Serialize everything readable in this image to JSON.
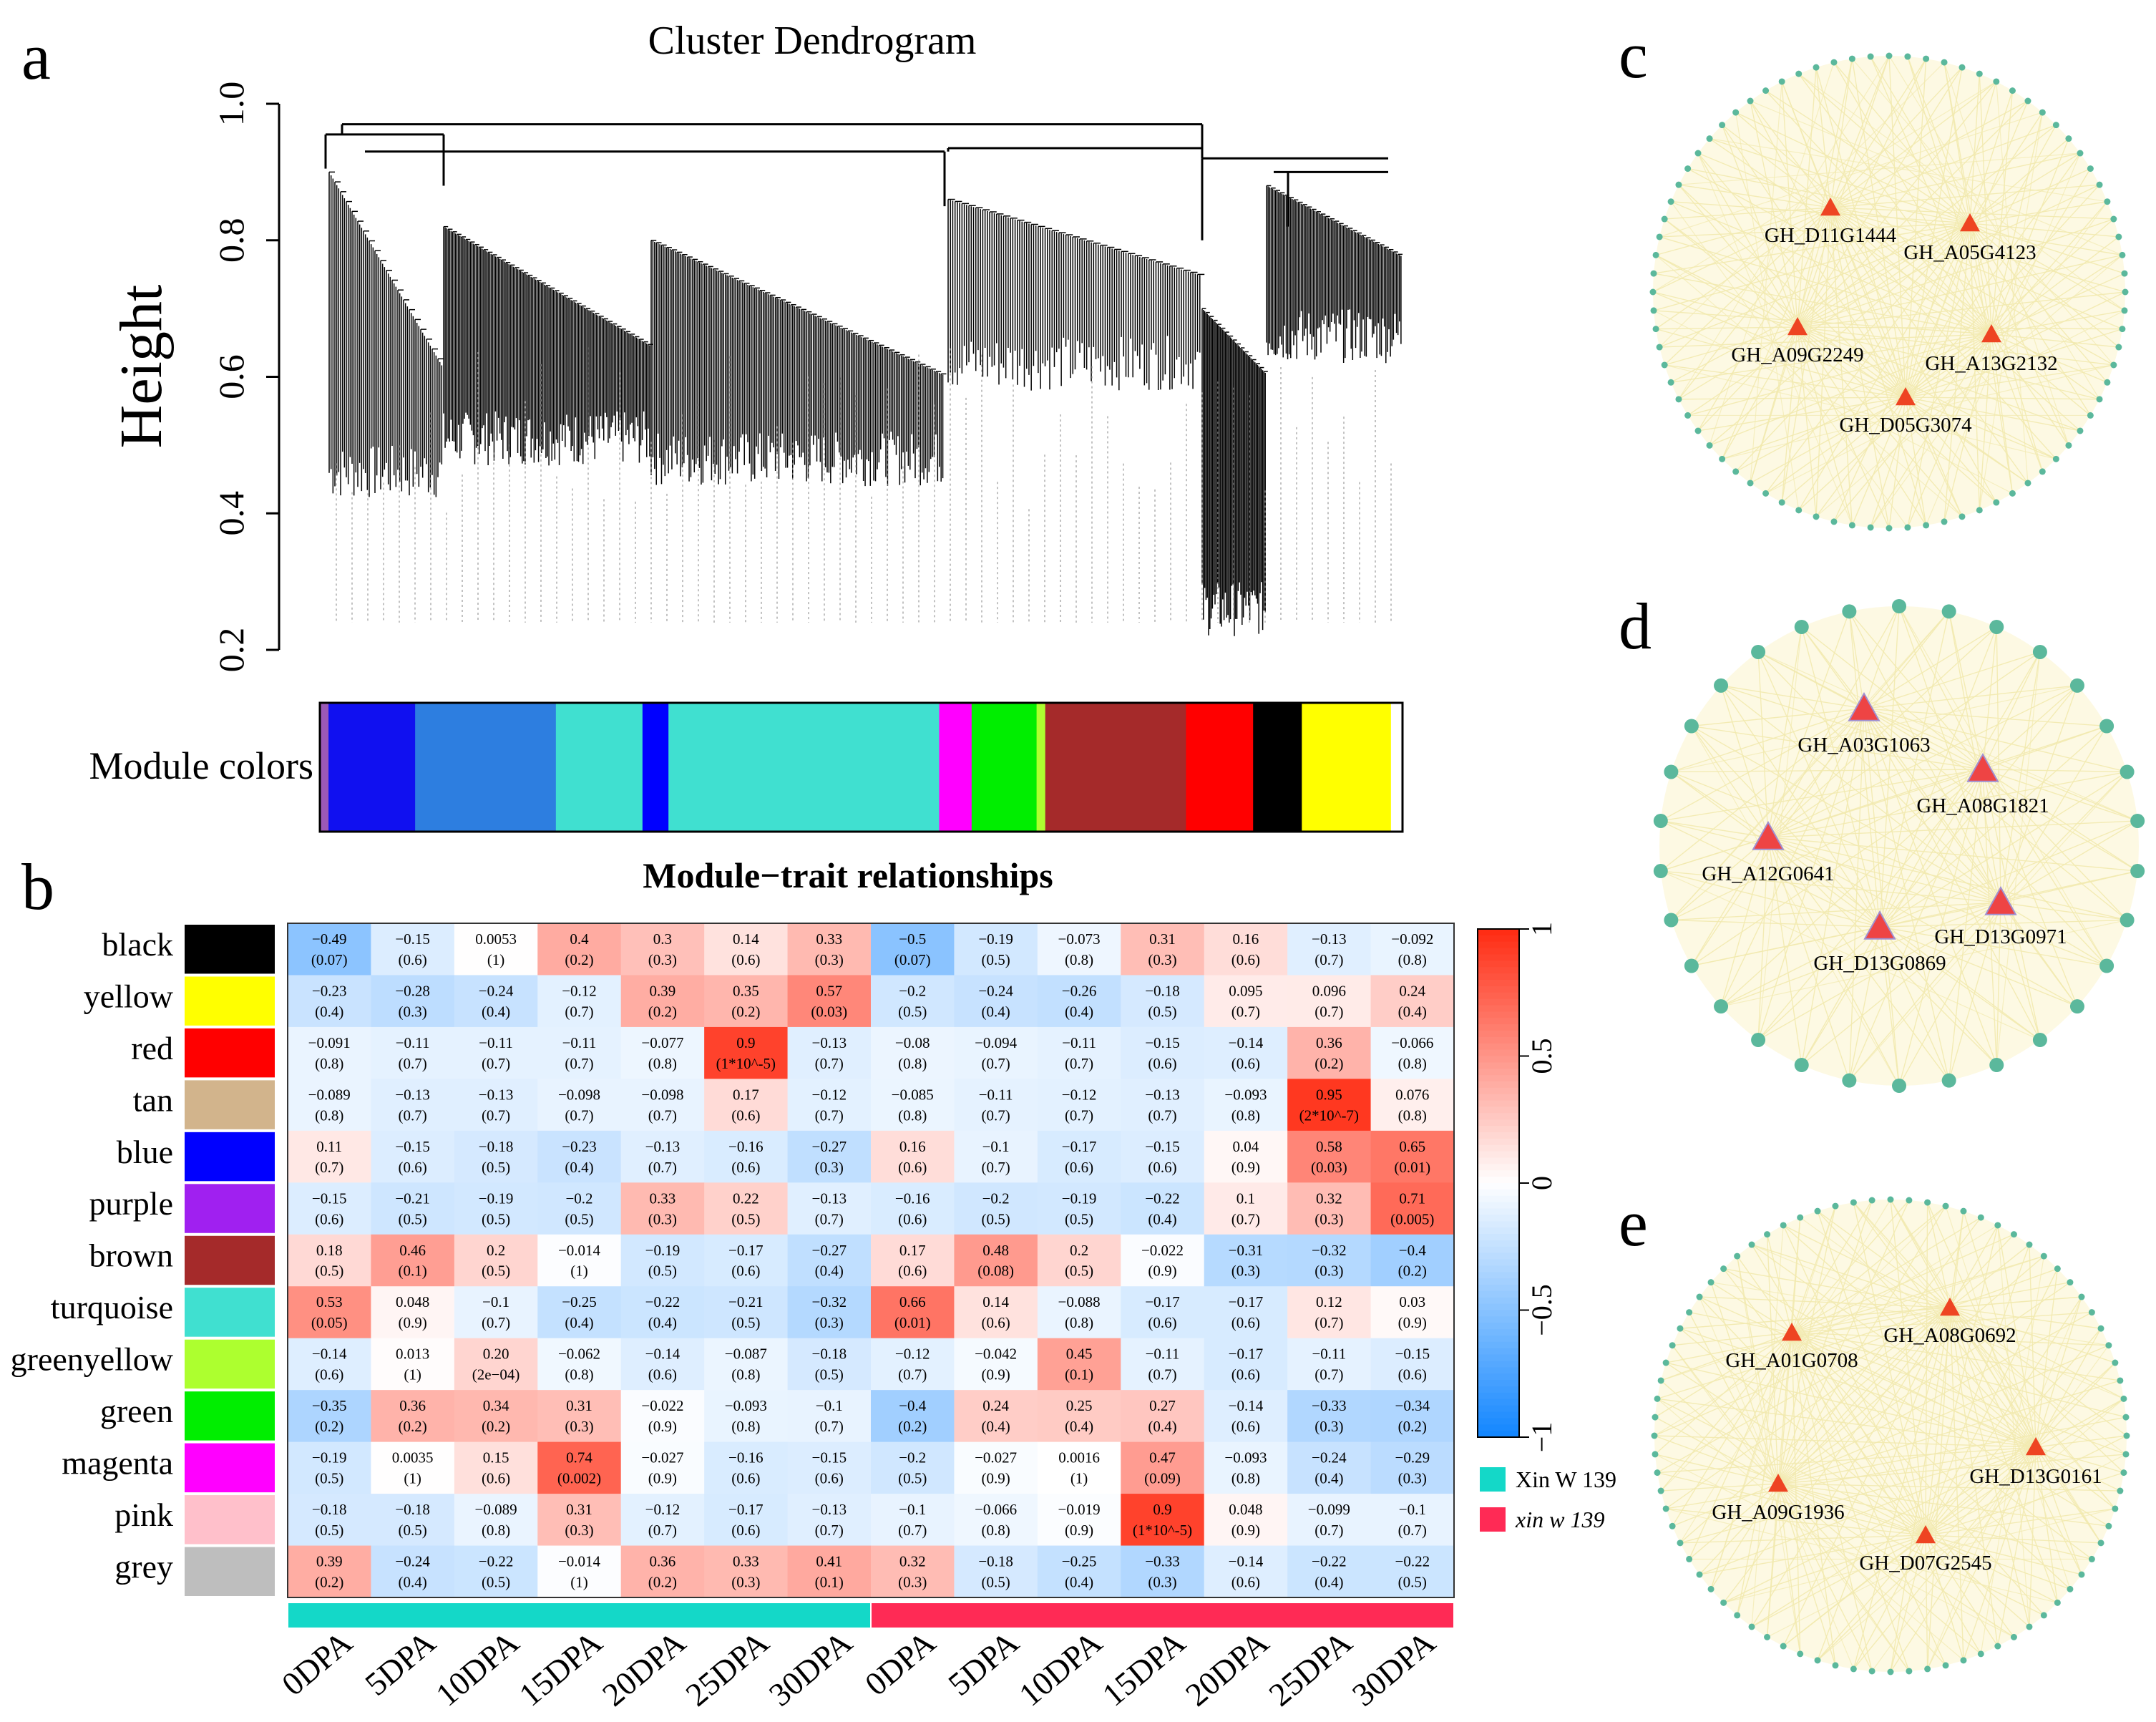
{
  "panels": {
    "a": "a",
    "b": "b",
    "c": "c",
    "d": "d",
    "e": "e"
  },
  "chart_data": [
    {
      "type": "dendrogram",
      "panel": "a",
      "title": "Cluster Dendrogram",
      "ylabel": "Height",
      "ylim": [
        0.2,
        1.0
      ],
      "yticks": [
        "0.2",
        "0.4",
        "0.6",
        "0.8",
        "1.0"
      ],
      "module_colors_label": "Module colors",
      "module_color_bands": [
        {
          "module": "mixed",
          "color": "#9b59b6",
          "width": 0.008
        },
        {
          "module": "blue",
          "color": "#1010f0",
          "width": 0.08
        },
        {
          "module": "turquoise-blue mix",
          "color": "#2d7ee0",
          "width": 0.13
        },
        {
          "module": "turquoise",
          "color": "#40e0d0",
          "width": 0.08
        },
        {
          "module": "blue",
          "color": "#0000ff",
          "width": 0.024
        },
        {
          "module": "turquoise",
          "color": "#40e0d0",
          "width": 0.25
        },
        {
          "module": "magenta/pink",
          "color": "#ff00ff",
          "width": 0.03
        },
        {
          "module": "green",
          "color": "#00ee00",
          "width": 0.06
        },
        {
          "module": "greenyellow",
          "color": "#adff2f",
          "width": 0.008
        },
        {
          "module": "brown",
          "color": "#a52a2a",
          "width": 0.13
        },
        {
          "module": "red",
          "color": "#ff0000",
          "width": 0.062
        },
        {
          "module": "black",
          "color": "#000000",
          "width": 0.045
        },
        {
          "module": "yellow",
          "color": "#ffff00",
          "width": 0.082
        }
      ]
    },
    {
      "type": "heatmap",
      "panel": "b",
      "title": "Module−trait relationships",
      "rows": [
        "black",
        "yellow",
        "red",
        "tan",
        "blue",
        "purple",
        "brown",
        "turquoise",
        "greenyellow",
        "green",
        "magenta",
        "pink",
        "grey"
      ],
      "row_colors": [
        "#000000",
        "#ffff00",
        "#ff0000",
        "#d2b48c",
        "#0000ff",
        "#a020f0",
        "#a52a2a",
        "#40e0d0",
        "#adff2f",
        "#00ee00",
        "#ff00ff",
        "#ffc0cb",
        "#bebebe"
      ],
      "columns": [
        "0DPA",
        "5DPA",
        "10DPA",
        "15DPA",
        "20DPA",
        "25DPA",
        "30DPA",
        "0DPA",
        "5DPA",
        "10DPA",
        "15DPA",
        "20DPA",
        "25DPA",
        "30DPA"
      ],
      "groups": [
        {
          "name": "Xin W 139",
          "italic": false,
          "color": "#14d8c8",
          "span": [
            0,
            6
          ]
        },
        {
          "name": "xin w 139",
          "italic": true,
          "color": "#ff2a55",
          "span": [
            7,
            13
          ]
        }
      ],
      "colorbar": {
        "min": -1,
        "max": 1,
        "ticks": [
          "1",
          "0.5",
          "0",
          "−0.5",
          "−1"
        ]
      },
      "values": [
        [
          -0.49,
          -0.15,
          0.0053,
          0.4,
          0.3,
          0.14,
          0.33,
          -0.5,
          -0.19,
          -0.073,
          0.31,
          0.16,
          -0.13,
          -0.092
        ],
        [
          -0.23,
          -0.28,
          -0.24,
          -0.12,
          0.39,
          0.35,
          0.57,
          -0.2,
          -0.24,
          -0.26,
          -0.18,
          0.095,
          0.096,
          0.24
        ],
        [
          -0.091,
          -0.11,
          -0.11,
          -0.11,
          -0.077,
          0.9,
          -0.13,
          -0.08,
          -0.094,
          -0.11,
          -0.15,
          -0.14,
          0.36,
          -0.066
        ],
        [
          -0.089,
          -0.13,
          -0.13,
          -0.098,
          -0.098,
          0.17,
          -0.12,
          -0.085,
          -0.11,
          -0.12,
          -0.13,
          -0.093,
          0.95,
          0.076
        ],
        [
          0.11,
          -0.15,
          -0.18,
          -0.23,
          -0.13,
          -0.16,
          -0.27,
          0.16,
          -0.1,
          -0.17,
          -0.15,
          0.04,
          0.58,
          0.65
        ],
        [
          -0.15,
          -0.21,
          -0.19,
          -0.2,
          0.33,
          0.22,
          -0.13,
          -0.16,
          -0.2,
          -0.19,
          -0.22,
          0.1,
          0.32,
          0.71
        ],
        [
          0.18,
          0.46,
          0.2,
          -0.014,
          -0.19,
          -0.17,
          -0.27,
          0.17,
          0.48,
          0.2,
          -0.022,
          -0.31,
          -0.32,
          -0.4
        ],
        [
          0.53,
          0.048,
          -0.1,
          -0.25,
          -0.22,
          -0.21,
          -0.32,
          0.66,
          0.14,
          -0.088,
          -0.17,
          -0.17,
          0.12,
          0.03
        ],
        [
          -0.14,
          0.013,
          0.2,
          -0.062,
          -0.14,
          -0.087,
          -0.18,
          -0.12,
          -0.042,
          0.45,
          -0.11,
          -0.17,
          -0.11,
          -0.15
        ],
        [
          -0.35,
          0.36,
          0.34,
          0.31,
          -0.022,
          -0.093,
          -0.1,
          -0.4,
          0.24,
          0.25,
          0.27,
          -0.14,
          -0.33,
          -0.34
        ],
        [
          -0.19,
          0.0035,
          0.15,
          0.74,
          -0.027,
          -0.16,
          -0.15,
          -0.2,
          -0.027,
          0.0016,
          0.47,
          -0.093,
          -0.24,
          -0.29
        ],
        [
          -0.18,
          -0.18,
          -0.089,
          0.31,
          -0.12,
          -0.17,
          -0.13,
          -0.1,
          -0.066,
          -0.019,
          0.9,
          0.048,
          -0.099,
          -0.1
        ],
        [
          0.39,
          -0.24,
          -0.22,
          -0.014,
          0.36,
          0.33,
          0.41,
          0.32,
          -0.18,
          -0.25,
          -0.33,
          -0.14,
          -0.22,
          -0.22
        ]
      ],
      "cell_labels": [
        [
          [
            "−0.49",
            "(0.07)"
          ],
          [
            "−0.15",
            "(0.6)"
          ],
          [
            "0.0053",
            "(1)"
          ],
          [
            "0.4",
            "(0.2)"
          ],
          [
            "0.3",
            "(0.3)"
          ],
          [
            "0.14",
            "(0.6)"
          ],
          [
            "0.33",
            "(0.3)"
          ],
          [
            "−0.5",
            "(0.07)"
          ],
          [
            "−0.19",
            "(0.5)"
          ],
          [
            "−0.073",
            "(0.8)"
          ],
          [
            "0.31",
            "(0.3)"
          ],
          [
            "0.16",
            "(0.6)"
          ],
          [
            "−0.13",
            "(0.7)"
          ],
          [
            "−0.092",
            "(0.8)"
          ]
        ],
        [
          [
            "−0.23",
            "(0.4)"
          ],
          [
            "−0.28",
            "(0.3)"
          ],
          [
            "−0.24",
            "(0.4)"
          ],
          [
            "−0.12",
            "(0.7)"
          ],
          [
            "0.39",
            "(0.2)"
          ],
          [
            "0.35",
            "(0.2)"
          ],
          [
            "0.57",
            "(0.03)"
          ],
          [
            "−0.2",
            "(0.5)"
          ],
          [
            "−0.24",
            "(0.4)"
          ],
          [
            "−0.26",
            "(0.4)"
          ],
          [
            "−0.18",
            "(0.5)"
          ],
          [
            "0.095",
            "(0.7)"
          ],
          [
            "0.096",
            "(0.7)"
          ],
          [
            "0.24",
            "(0.4)"
          ]
        ],
        [
          [
            "−0.091",
            "(0.8)"
          ],
          [
            "−0.11",
            "(0.7)"
          ],
          [
            "−0.11",
            "(0.7)"
          ],
          [
            "−0.11",
            "(0.7)"
          ],
          [
            "−0.077",
            "(0.8)"
          ],
          [
            "0.9",
            "(1*10^-5)"
          ],
          [
            "−0.13",
            "(0.7)"
          ],
          [
            "−0.08",
            "(0.8)"
          ],
          [
            "−0.094",
            "(0.7)"
          ],
          [
            "−0.11",
            "(0.7)"
          ],
          [
            "−0.15",
            "(0.6)"
          ],
          [
            "−0.14",
            "(0.6)"
          ],
          [
            "0.36",
            "(0.2)"
          ],
          [
            "−0.066",
            "(0.8)"
          ]
        ],
        [
          [
            "−0.089",
            "(0.8)"
          ],
          [
            "−0.13",
            "(0.7)"
          ],
          [
            "−0.13",
            "(0.7)"
          ],
          [
            "−0.098",
            "(0.7)"
          ],
          [
            "−0.098",
            "(0.7)"
          ],
          [
            "0.17",
            "(0.6)"
          ],
          [
            "−0.12",
            "(0.7)"
          ],
          [
            "−0.085",
            "(0.8)"
          ],
          [
            "−0.11",
            "(0.7)"
          ],
          [
            "−0.12",
            "(0.7)"
          ],
          [
            "−0.13",
            "(0.7)"
          ],
          [
            "−0.093",
            "(0.8)"
          ],
          [
            "0.95",
            "(2*10^-7)"
          ],
          [
            "0.076",
            "(0.8)"
          ]
        ],
        [
          [
            "0.11",
            "(0.7)"
          ],
          [
            "−0.15",
            "(0.6)"
          ],
          [
            "−0.18",
            "(0.5)"
          ],
          [
            "−0.23",
            "(0.4)"
          ],
          [
            "−0.13",
            "(0.7)"
          ],
          [
            "−0.16",
            "(0.6)"
          ],
          [
            "−0.27",
            "(0.3)"
          ],
          [
            "0.16",
            "(0.6)"
          ],
          [
            "−0.1",
            "(0.7)"
          ],
          [
            "−0.17",
            "(0.6)"
          ],
          [
            "−0.15",
            "(0.6)"
          ],
          [
            "0.04",
            "(0.9)"
          ],
          [
            "0.58",
            "(0.03)"
          ],
          [
            "0.65",
            "(0.01)"
          ]
        ],
        [
          [
            "−0.15",
            "(0.6)"
          ],
          [
            "−0.21",
            "(0.5)"
          ],
          [
            "−0.19",
            "(0.5)"
          ],
          [
            "−0.2",
            "(0.5)"
          ],
          [
            "0.33",
            "(0.3)"
          ],
          [
            "0.22",
            "(0.5)"
          ],
          [
            "−0.13",
            "(0.7)"
          ],
          [
            "−0.16",
            "(0.6)"
          ],
          [
            "−0.2",
            "(0.5)"
          ],
          [
            "−0.19",
            "(0.5)"
          ],
          [
            "−0.22",
            "(0.4)"
          ],
          [
            "0.1",
            "(0.7)"
          ],
          [
            "0.32",
            "(0.3)"
          ],
          [
            "0.71",
            "(0.005)"
          ]
        ],
        [
          [
            "0.18",
            "(0.5)"
          ],
          [
            "0.46",
            "(0.1)"
          ],
          [
            "0.2",
            "(0.5)"
          ],
          [
            "−0.014",
            "(1)"
          ],
          [
            "−0.19",
            "(0.5)"
          ],
          [
            "−0.17",
            "(0.6)"
          ],
          [
            "−0.27",
            "(0.4)"
          ],
          [
            "0.17",
            "(0.6)"
          ],
          [
            "0.48",
            "(0.08)"
          ],
          [
            "0.2",
            "(0.5)"
          ],
          [
            "−0.022",
            "(0.9)"
          ],
          [
            "−0.31",
            "(0.3)"
          ],
          [
            "−0.32",
            "(0.3)"
          ],
          [
            "−0.4",
            "(0.2)"
          ]
        ],
        [
          [
            "0.53",
            "(0.05)"
          ],
          [
            "0.048",
            "(0.9)"
          ],
          [
            "−0.1",
            "(0.7)"
          ],
          [
            "−0.25",
            "(0.4)"
          ],
          [
            "−0.22",
            "(0.4)"
          ],
          [
            "−0.21",
            "(0.5)"
          ],
          [
            "−0.32",
            "(0.3)"
          ],
          [
            "0.66",
            "(0.01)"
          ],
          [
            "0.14",
            "(0.6)"
          ],
          [
            "−0.088",
            "(0.8)"
          ],
          [
            "−0.17",
            "(0.6)"
          ],
          [
            "−0.17",
            "(0.6)"
          ],
          [
            "0.12",
            "(0.7)"
          ],
          [
            "0.03",
            "(0.9)"
          ]
        ],
        [
          [
            "−0.14",
            "(0.6)"
          ],
          [
            "0.013",
            "(1)"
          ],
          [
            "0.20",
            "(2e−04)"
          ],
          [
            "−0.062",
            "(0.8)"
          ],
          [
            "−0.14",
            "(0.6)"
          ],
          [
            "−0.087",
            "(0.8)"
          ],
          [
            "−0.18",
            "(0.5)"
          ],
          [
            "−0.12",
            "(0.7)"
          ],
          [
            "−0.042",
            "(0.9)"
          ],
          [
            "0.45",
            "(0.1)"
          ],
          [
            "−0.11",
            "(0.7)"
          ],
          [
            "−0.17",
            "(0.6)"
          ],
          [
            "−0.11",
            "(0.7)"
          ],
          [
            "−0.15",
            "(0.6)"
          ]
        ],
        [
          [
            "−0.35",
            "(0.2)"
          ],
          [
            "0.36",
            "(0.2)"
          ],
          [
            "0.34",
            "(0.2)"
          ],
          [
            "0.31",
            "(0.3)"
          ],
          [
            "−0.022",
            "(0.9)"
          ],
          [
            "−0.093",
            "(0.8)"
          ],
          [
            "−0.1",
            "(0.7)"
          ],
          [
            "−0.4",
            "(0.2)"
          ],
          [
            "0.24",
            "(0.4)"
          ],
          [
            "0.25",
            "(0.4)"
          ],
          [
            "0.27",
            "(0.4)"
          ],
          [
            "−0.14",
            "(0.6)"
          ],
          [
            "−0.33",
            "(0.3)"
          ],
          [
            "−0.34",
            "(0.2)"
          ]
        ],
        [
          [
            "−0.19",
            "(0.5)"
          ],
          [
            "0.0035",
            "(1)"
          ],
          [
            "0.15",
            "(0.6)"
          ],
          [
            "0.74",
            "(0.002)"
          ],
          [
            "−0.027",
            "(0.9)"
          ],
          [
            "−0.16",
            "(0.6)"
          ],
          [
            "−0.15",
            "(0.6)"
          ],
          [
            "−0.2",
            "(0.5)"
          ],
          [
            "−0.027",
            "(0.9)"
          ],
          [
            "0.0016",
            "(1)"
          ],
          [
            "0.47",
            "(0.09)"
          ],
          [
            "−0.093",
            "(0.8)"
          ],
          [
            "−0.24",
            "(0.4)"
          ],
          [
            "−0.29",
            "(0.3)"
          ]
        ],
        [
          [
            "−0.18",
            "(0.5)"
          ],
          [
            "−0.18",
            "(0.5)"
          ],
          [
            "−0.089",
            "(0.8)"
          ],
          [
            "0.31",
            "(0.3)"
          ],
          [
            "−0.12",
            "(0.7)"
          ],
          [
            "−0.17",
            "(0.6)"
          ],
          [
            "−0.13",
            "(0.7)"
          ],
          [
            "−0.1",
            "(0.7)"
          ],
          [
            "−0.066",
            "(0.8)"
          ],
          [
            "−0.019",
            "(0.9)"
          ],
          [
            "0.9",
            "(1*10^-5)"
          ],
          [
            "0.048",
            "(0.9)"
          ],
          [
            "−0.099",
            "(0.7)"
          ],
          [
            "−0.1",
            "(0.7)"
          ]
        ],
        [
          [
            "0.39",
            "(0.2)"
          ],
          [
            "−0.24",
            "(0.4)"
          ],
          [
            "−0.22",
            "(0.5)"
          ],
          [
            "−0.014",
            "(1)"
          ],
          [
            "0.36",
            "(0.2)"
          ],
          [
            "0.33",
            "(0.3)"
          ],
          [
            "0.41",
            "(0.1)"
          ],
          [
            "0.32",
            "(0.3)"
          ],
          [
            "−0.18",
            "(0.5)"
          ],
          [
            "−0.25",
            "(0.4)"
          ],
          [
            "−0.33",
            "(0.3)"
          ],
          [
            "−0.14",
            "(0.6)"
          ],
          [
            "−0.22",
            "(0.4)"
          ],
          [
            "−0.22",
            "(0.5)"
          ]
        ]
      ]
    },
    {
      "type": "network",
      "panel": "c",
      "hub_genes": [
        "GH_D11G1444",
        "GH_A05G4123",
        "GH_A09G2249",
        "GH_A13G2132",
        "GH_D05G3074"
      ],
      "peripheral_node_count": 80,
      "node_color": "#5bb89c",
      "hub_color": "#ee4422",
      "edge_color": "#f2eab0"
    },
    {
      "type": "network",
      "panel": "d",
      "hub_genes": [
        "GH_A03G1063",
        "GH_A08G1821",
        "GH_A12G0641",
        "GH_D13G0971",
        "GH_D13G0869"
      ],
      "peripheral_node_count": 30,
      "node_color": "#5bb89c",
      "hub_color": "#ee4444",
      "edge_color": "#f2eab0"
    },
    {
      "type": "network",
      "panel": "e",
      "hub_genes": [
        "GH_A08G0692",
        "GH_A01G0708",
        "GH_D13G0161",
        "GH_A09G1936",
        "GH_D07G2545"
      ],
      "peripheral_node_count": 80,
      "node_color": "#5bb89c",
      "hub_color": "#ee4422",
      "edge_color": "#f2eab0"
    }
  ]
}
